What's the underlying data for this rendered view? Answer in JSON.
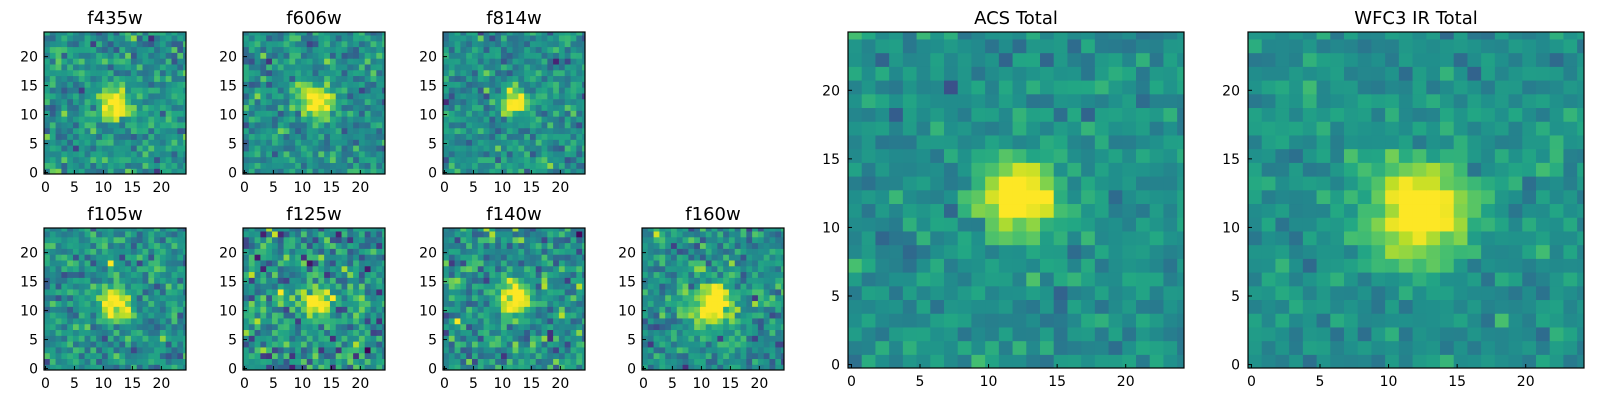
{
  "chart_data": [
    {
      "id": "p1",
      "type": "heatmap",
      "title": "f435w",
      "xlim": [
        0,
        24
      ],
      "ylim": [
        0,
        24
      ],
      "x_ticks": [
        0,
        5,
        10,
        15,
        20
      ],
      "y_ticks": [
        0,
        5,
        10,
        15,
        20
      ],
      "source_center": [
        11.5,
        11.5
      ],
      "source_size": 4,
      "noise_level": 0.55,
      "colormap": "viridis"
    },
    {
      "id": "p2",
      "type": "heatmap",
      "title": "f606w",
      "xlim": [
        0,
        24
      ],
      "ylim": [
        0,
        24
      ],
      "x_ticks": [
        0,
        5,
        10,
        15,
        20
      ],
      "y_ticks": [
        0,
        5,
        10,
        15,
        20
      ],
      "source_center": [
        12,
        12
      ],
      "source_size": 4,
      "noise_level": 0.5,
      "colormap": "viridis"
    },
    {
      "id": "p3",
      "type": "heatmap",
      "title": "f814w",
      "xlim": [
        0,
        24
      ],
      "ylim": [
        0,
        24
      ],
      "x_ticks": [
        0,
        5,
        10,
        15,
        20
      ],
      "y_ticks": [
        0,
        5,
        10,
        15,
        20
      ],
      "source_center": [
        12,
        12
      ],
      "source_size": 3,
      "noise_level": 0.5,
      "colormap": "viridis"
    },
    {
      "id": "p4",
      "type": "heatmap",
      "title": "f105w",
      "xlim": [
        0,
        24
      ],
      "ylim": [
        0,
        24
      ],
      "x_ticks": [
        0,
        5,
        10,
        15,
        20
      ],
      "y_ticks": [
        0,
        5,
        10,
        15,
        20
      ],
      "source_center": [
        11.5,
        11
      ],
      "source_size": 4,
      "noise_level": 0.55,
      "colormap": "viridis"
    },
    {
      "id": "p5",
      "type": "heatmap",
      "title": "f125w",
      "xlim": [
        0,
        24
      ],
      "ylim": [
        0,
        24
      ],
      "x_ticks": [
        0,
        5,
        10,
        15,
        20
      ],
      "y_ticks": [
        0,
        5,
        10,
        15,
        20
      ],
      "source_center": [
        12,
        11
      ],
      "source_size": 4,
      "noise_level": 0.75,
      "colormap": "viridis"
    },
    {
      "id": "p6",
      "type": "heatmap",
      "title": "f140w",
      "xlim": [
        0,
        24
      ],
      "ylim": [
        0,
        24
      ],
      "x_ticks": [
        0,
        5,
        10,
        15,
        20
      ],
      "y_ticks": [
        0,
        5,
        10,
        15,
        20
      ],
      "source_center": [
        12,
        12
      ],
      "source_size": 4,
      "noise_level": 0.6,
      "colormap": "viridis"
    },
    {
      "id": "p7",
      "type": "heatmap",
      "title": "f160w",
      "xlim": [
        0,
        24
      ],
      "ylim": [
        0,
        24
      ],
      "x_ticks": [
        0,
        5,
        10,
        15,
        20
      ],
      "y_ticks": [
        0,
        5,
        10,
        15,
        20
      ],
      "source_center": [
        12,
        11
      ],
      "source_size": 5,
      "noise_level": 0.55,
      "colormap": "viridis"
    },
    {
      "id": "p8",
      "type": "heatmap",
      "title": "ACS Total",
      "xlim": [
        0,
        24
      ],
      "ylim": [
        0,
        24
      ],
      "x_ticks": [
        0,
        5,
        10,
        15,
        20
      ],
      "y_ticks": [
        0,
        5,
        10,
        15,
        20
      ],
      "source_center": [
        12,
        12
      ],
      "source_size": 4,
      "noise_level": 0.35,
      "colormap": "viridis"
    },
    {
      "id": "p9",
      "type": "heatmap",
      "title": "WFC3 IR Total",
      "xlim": [
        0,
        24
      ],
      "ylim": [
        0,
        24
      ],
      "x_ticks": [
        0,
        5,
        10,
        15,
        20
      ],
      "y_ticks": [
        0,
        5,
        10,
        15,
        20
      ],
      "source_center": [
        12,
        11
      ],
      "source_size": 5,
      "noise_level": 0.3,
      "colormap": "viridis"
    }
  ]
}
